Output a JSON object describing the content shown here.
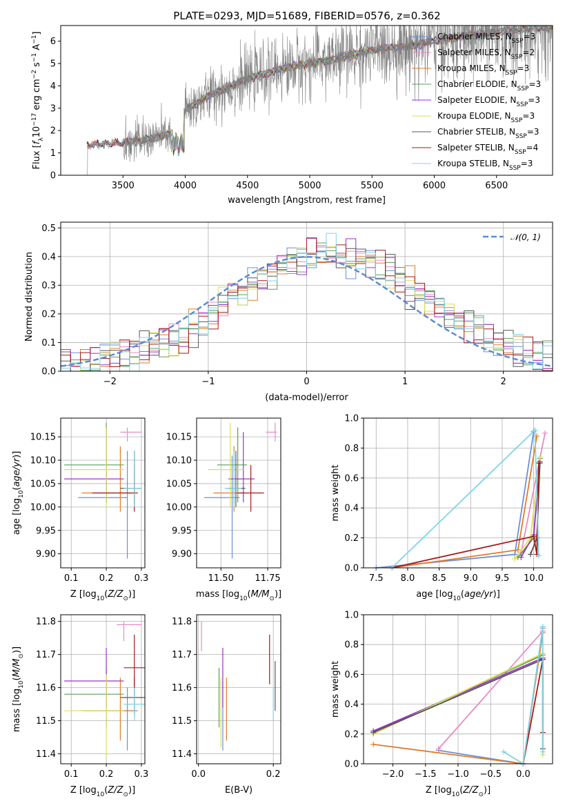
{
  "title": "PLATE=0293, MJD=51689, FIBERID=0576, z=0.362",
  "colors": {
    "Chabrier MILES": "#6b8fd6",
    "Salpeter MILES": "#e88bc4",
    "Kroupa MILES": "#e07a2c",
    "Chabrier ELODIE": "#5a9e5a",
    "Salpeter ELODIE": "#9b30c8",
    "Kroupa ELODIE": "#d8e050",
    "Chabrier STELIB": "#555555",
    "Salpeter STELIB": "#a51818",
    "Kroupa STELIB": "#7fd4e8",
    "data": "#808080",
    "gauss": "#5b8ad6"
  },
  "chart_data": [
    {
      "id": "spectrum",
      "type": "line",
      "xlabel": "wavelength [Angstrom, rest frame]",
      "ylabel": "Flux [f_λ 10^-17 erg cm^-2 s^-1 A^-1]",
      "xlim": [
        3000,
        6950
      ],
      "ylim": [
        0,
        6.7
      ],
      "xticks": [
        3500,
        4000,
        4500,
        5000,
        5500,
        6000,
        6500
      ],
      "yticks": [
        0,
        1,
        2,
        3,
        4,
        5,
        6
      ],
      "grid": false,
      "legend_position": "top-right",
      "legend": [
        "Chabrier MILES, N_SSP=3",
        "Salpeter MILES, N_SSP=2",
        "Kroupa MILES, N_SSP=3",
        "Chabrier ELODIE, N_SSP=3",
        "Salpeter ELODIE, N_SSP=3",
        "Kroupa ELODIE, N_SSP=3",
        "Chabrier STELIB, N_SSP=3",
        "Salpeter STELIB, N_SSP=4",
        "Kroupa STELIB, N_SSP=3"
      ],
      "continuum_points": [
        [
          3210,
          1.35
        ],
        [
          3350,
          1.4
        ],
        [
          3500,
          1.45
        ],
        [
          3700,
          1.6
        ],
        [
          3900,
          1.9
        ],
        [
          4000,
          2.9
        ],
        [
          4200,
          3.6
        ],
        [
          4500,
          4.3
        ],
        [
          4800,
          4.8
        ],
        [
          5000,
          5.0
        ],
        [
          5200,
          5.2
        ],
        [
          5500,
          5.6
        ],
        [
          5800,
          5.8
        ],
        [
          6000,
          6.0
        ],
        [
          6200,
          6.2
        ],
        [
          6500,
          6.4
        ],
        [
          6800,
          6.6
        ]
      ]
    },
    {
      "id": "residuals",
      "type": "histogram",
      "xlabel": "(data-model)/error",
      "ylabel": "Normed distribution",
      "xlim": [
        -2.5,
        2.5
      ],
      "ylim": [
        0,
        0.52
      ],
      "xticks": [
        -2,
        -1,
        0,
        1,
        2
      ],
      "yticks": [
        0.0,
        0.1,
        0.2,
        0.3,
        0.4,
        0.5
      ],
      "grid": true,
      "legend_position": "top-right",
      "legend": [
        "𝒩(0, 1)"
      ],
      "bin_width": 0.1,
      "approx_values": [
        0.02,
        0.02,
        0.025,
        0.035,
        0.05,
        0.06,
        0.065,
        0.07,
        0.085,
        0.1,
        0.105,
        0.11,
        0.12,
        0.15,
        0.18,
        0.21,
        0.235,
        0.26,
        0.28,
        0.3,
        0.32,
        0.345,
        0.37,
        0.38,
        0.39,
        0.405,
        0.42,
        0.41,
        0.4,
        0.395,
        0.39,
        0.38,
        0.365,
        0.35,
        0.33,
        0.3,
        0.28,
        0.255,
        0.23,
        0.205,
        0.18,
        0.16,
        0.14,
        0.12,
        0.1,
        0.085,
        0.07,
        0.06,
        0.05,
        0.04
      ]
    },
    {
      "id": "age-vs-Z",
      "type": "scatter",
      "xlabel": "Z [log10(Z/Z⊙)]",
      "ylabel": "age [log10(age/yr)]",
      "xlim": [
        0.07,
        0.31
      ],
      "ylim": [
        9.87,
        10.19
      ],
      "xticks": [
        0.1,
        0.2,
        0.3
      ],
      "yticks": [
        9.9,
        9.95,
        10.0,
        10.05,
        10.1,
        10.15
      ],
      "grid": true,
      "points": [
        {
          "name": "Chabrier MILES",
          "x": 0.26,
          "y": 10.02,
          "xerr": [
            0.12,
            0.26
          ],
          "yerr": [
            9.89,
            10.12
          ]
        },
        {
          "name": "Salpeter MILES",
          "x": 0.26,
          "y": 10.16,
          "xerr": [
            0.24,
            0.3
          ],
          "yerr": [
            10.14,
            10.17
          ]
        },
        {
          "name": "Kroupa MILES",
          "x": 0.24,
          "y": 10.03,
          "xerr": [
            0.13,
            0.28
          ],
          "yerr": [
            9.99,
            10.13
          ]
        },
        {
          "name": "Chabrier ELODIE",
          "x": 0.2,
          "y": 10.09,
          "xerr": [
            0.08,
            0.25
          ],
          "yerr": [
            10.01,
            10.18
          ]
        },
        {
          "name": "Salpeter ELODIE",
          "x": 0.2,
          "y": 10.06,
          "xerr": [
            0.08,
            0.25
          ],
          "yerr": [
            10.01,
            10.17
          ]
        },
        {
          "name": "Kroupa ELODIE",
          "x": 0.2,
          "y": 10.08,
          "xerr": [
            0.08,
            0.25
          ],
          "yerr": [
            10.0,
            10.17
          ]
        },
        {
          "name": "Chabrier STELIB",
          "x": 0.28,
          "y": 10.04,
          "xerr": [
            0.24,
            0.3
          ],
          "yerr": [
            10.0,
            10.12
          ]
        },
        {
          "name": "Salpeter STELIB",
          "x": 0.28,
          "y": 10.03,
          "xerr": [
            0.16,
            0.29
          ],
          "yerr": [
            9.99,
            10.09
          ]
        },
        {
          "name": "Kroupa STELIB",
          "x": 0.28,
          "y": 10.04,
          "xerr": [
            0.25,
            0.3
          ],
          "yerr": [
            10.0,
            10.12
          ]
        }
      ]
    },
    {
      "id": "age-vs-mass",
      "type": "scatter",
      "xlabel": "mass [log10(M/M⊙)]",
      "ylabel": "",
      "xlim": [
        11.37,
        11.82
      ],
      "ylim": [
        9.87,
        10.19
      ],
      "xticks": [
        11.5,
        11.75
      ],
      "yticks": [
        9.9,
        9.95,
        10.0,
        10.05,
        10.1,
        10.15
      ],
      "grid": true,
      "points": [
        {
          "name": "Chabrier MILES",
          "x": 11.56,
          "y": 10.02,
          "xerr": [
            11.41,
            11.6
          ],
          "yerr": [
            9.89,
            10.11
          ]
        },
        {
          "name": "Salpeter MILES",
          "x": 11.79,
          "y": 10.16,
          "xerr": [
            11.74,
            11.8
          ],
          "yerr": [
            10.14,
            10.18
          ]
        },
        {
          "name": "Kroupa MILES",
          "x": 11.57,
          "y": 10.03,
          "xerr": [
            11.46,
            11.63
          ],
          "yerr": [
            9.99,
            10.13
          ]
        },
        {
          "name": "Chabrier ELODIE",
          "x": 11.59,
          "y": 10.09,
          "xerr": [
            11.48,
            11.64
          ],
          "yerr": [
            10.01,
            10.17
          ]
        },
        {
          "name": "Salpeter ELODIE",
          "x": 11.62,
          "y": 10.06,
          "xerr": [
            11.54,
            11.68
          ],
          "yerr": [
            10.01,
            10.16
          ]
        },
        {
          "name": "Kroupa ELODIE",
          "x": 11.55,
          "y": 10.08,
          "xerr": [
            11.43,
            11.62
          ],
          "yerr": [
            10.0,
            10.18
          ]
        },
        {
          "name": "Chabrier STELIB",
          "x": 11.58,
          "y": 10.04,
          "xerr": [
            11.53,
            11.63
          ],
          "yerr": [
            10.0,
            10.12
          ]
        },
        {
          "name": "Salpeter STELIB",
          "x": 11.66,
          "y": 10.03,
          "xerr": [
            11.59,
            11.73
          ],
          "yerr": [
            9.99,
            10.09
          ]
        },
        {
          "name": "Kroupa STELIB",
          "x": 11.57,
          "y": 10.04,
          "xerr": [
            11.52,
            11.61
          ],
          "yerr": [
            10.0,
            10.12
          ]
        }
      ]
    },
    {
      "id": "weight-vs-age",
      "type": "line",
      "xlabel": "age [log10(age/yr)]",
      "ylabel": "mass weight",
      "xlim": [
        7.3,
        10.3
      ],
      "ylim": [
        0,
        1.0
      ],
      "xticks": [
        7.5,
        8.0,
        8.5,
        9.0,
        9.5,
        10.0
      ],
      "yticks": [
        0.0,
        0.2,
        0.4,
        0.6,
        0.8,
        1.0
      ],
      "grid": true,
      "series": [
        {
          "name": "Chabrier MILES",
          "x": [
            7.5,
            9.7,
            10.0
          ],
          "y": [
            0.0,
            0.09,
            0.91
          ]
        },
        {
          "name": "Salpeter MILES",
          "x": [
            9.8,
            10.18
          ],
          "y": [
            0.1,
            0.9
          ]
        },
        {
          "name": "Kroupa MILES",
          "x": [
            7.75,
            9.75,
            10.05
          ],
          "y": [
            0.0,
            0.12,
            0.88
          ]
        },
        {
          "name": "Chabrier ELODIE",
          "x": [
            9.75,
            10.0,
            10.1
          ],
          "y": [
            0.07,
            0.2,
            0.73
          ]
        },
        {
          "name": "Salpeter ELODIE",
          "x": [
            9.8,
            10.0,
            10.1
          ],
          "y": [
            0.07,
            0.22,
            0.71
          ]
        },
        {
          "name": "Kroupa ELODIE",
          "x": [
            9.7,
            9.95,
            10.1
          ],
          "y": [
            0.06,
            0.2,
            0.74
          ]
        },
        {
          "name": "Chabrier STELIB",
          "x": [
            9.95,
            10.05,
            10.1
          ],
          "y": [
            0.09,
            0.2,
            0.7
          ]
        },
        {
          "name": "Salpeter STELIB",
          "x": [
            7.75,
            10.0,
            10.05,
            10.08
          ],
          "y": [
            0.0,
            0.21,
            0.09,
            0.7
          ]
        },
        {
          "name": "Kroupa STELIB",
          "x": [
            7.75,
            10.02,
            10.08
          ],
          "y": [
            0.0,
            0.92,
            0.08
          ]
        }
      ]
    },
    {
      "id": "mass-vs-Z",
      "type": "scatter",
      "xlabel": "Z [log10(Z/Z⊙)]",
      "ylabel": "mass [log10(M/M⊙)]",
      "xlim": [
        0.07,
        0.31
      ],
      "ylim": [
        11.37,
        11.82
      ],
      "xticks": [
        0.1,
        0.2,
        0.3
      ],
      "yticks": [
        11.4,
        11.5,
        11.6,
        11.7,
        11.8
      ],
      "grid": true,
      "points": [
        {
          "name": "Chabrier MILES",
          "x": 0.26,
          "y": 11.53,
          "xerr": [
            0.14,
            0.29
          ],
          "yerr": [
            11.41,
            11.6
          ]
        },
        {
          "name": "Salpeter MILES",
          "x": 0.25,
          "y": 11.79,
          "xerr": [
            0.23,
            0.3
          ],
          "yerr": [
            11.74,
            11.8
          ]
        },
        {
          "name": "Kroupa MILES",
          "x": 0.24,
          "y": 11.53,
          "xerr": [
            0.13,
            0.28
          ],
          "yerr": [
            11.44,
            11.63
          ]
        },
        {
          "name": "Chabrier ELODIE",
          "x": 0.2,
          "y": 11.58,
          "xerr": [
            0.08,
            0.25
          ],
          "yerr": [
            11.48,
            11.66
          ]
        },
        {
          "name": "Salpeter ELODIE",
          "x": 0.2,
          "y": 11.62,
          "xerr": [
            0.08,
            0.25
          ],
          "yerr": [
            11.54,
            11.72
          ]
        },
        {
          "name": "Kroupa ELODIE",
          "x": 0.2,
          "y": 11.53,
          "xerr": [
            0.08,
            0.25
          ],
          "yerr": [
            11.39,
            11.64
          ]
        },
        {
          "name": "Chabrier STELIB",
          "x": 0.28,
          "y": 11.57,
          "xerr": [
            0.24,
            0.31
          ],
          "yerr": [
            11.52,
            11.63
          ]
        },
        {
          "name": "Salpeter STELIB",
          "x": 0.28,
          "y": 11.66,
          "xerr": [
            0.25,
            0.31
          ],
          "yerr": [
            11.6,
            11.76
          ]
        },
        {
          "name": "Kroupa STELIB",
          "x": 0.28,
          "y": 11.55,
          "xerr": [
            0.25,
            0.31
          ],
          "yerr": [
            11.5,
            11.6
          ]
        }
      ]
    },
    {
      "id": "mass-vs-EBV",
      "type": "scatter",
      "xlabel": "E(B-V)",
      "ylabel": "",
      "xlim": [
        -0.005,
        0.22
      ],
      "ylim": [
        11.37,
        11.82
      ],
      "xticks": [
        0.0,
        0.2
      ],
      "yticks": [
        11.4,
        11.5,
        11.6,
        11.7,
        11.8
      ],
      "grid": true,
      "points": [
        {
          "name": "Chabrier MILES",
          "x": 0.065,
          "y": 11.53,
          "xerr": [
            0.065,
            0.065
          ],
          "yerr": [
            11.41,
            11.62
          ]
        },
        {
          "name": "Salpeter MILES",
          "x": 0.008,
          "y": 11.76,
          "xerr": [
            0.008,
            0.008
          ],
          "yerr": [
            11.71,
            11.8
          ]
        },
        {
          "name": "Kroupa MILES",
          "x": 0.075,
          "y": 11.53,
          "xerr": [
            0.075,
            0.075
          ],
          "yerr": [
            11.44,
            11.63
          ]
        },
        {
          "name": "Chabrier ELODIE",
          "x": 0.055,
          "y": 11.58,
          "xerr": [
            0.055,
            0.055
          ],
          "yerr": [
            11.48,
            11.66
          ]
        },
        {
          "name": "Salpeter ELODIE",
          "x": 0.065,
          "y": 11.62,
          "xerr": [
            0.065,
            0.065
          ],
          "yerr": [
            11.54,
            11.72
          ]
        },
        {
          "name": "Kroupa ELODIE",
          "x": 0.06,
          "y": 11.53,
          "xerr": [
            0.06,
            0.06
          ],
          "yerr": [
            11.42,
            11.63
          ]
        },
        {
          "name": "Chabrier STELIB",
          "x": 0.205,
          "y": 11.6,
          "xerr": [
            0.205,
            0.205
          ],
          "yerr": [
            11.53,
            11.68
          ]
        },
        {
          "name": "Salpeter STELIB",
          "x": 0.19,
          "y": 11.68,
          "xerr": [
            0.19,
            0.19
          ],
          "yerr": [
            11.61,
            11.76
          ]
        },
        {
          "name": "Kroupa STELIB",
          "x": 0.2,
          "y": 11.55,
          "xerr": [
            0.2,
            0.2
          ],
          "yerr": [
            11.5,
            11.6
          ]
        }
      ]
    },
    {
      "id": "weight-vs-Z",
      "type": "line",
      "xlabel": "Z [log10(Z/Z⊙)]",
      "ylabel": "mass weight",
      "xlim": [
        -2.45,
        0.45
      ],
      "ylim": [
        0,
        1.0
      ],
      "xticks": [
        -2.0,
        -1.5,
        -1.0,
        -0.5,
        0.0
      ],
      "yticks": [
        0.0,
        0.2,
        0.4,
        0.6,
        0.8,
        1.0
      ],
      "grid": true,
      "series": [
        {
          "name": "Chabrier MILES",
          "x": [
            -1.3,
            0.0,
            0.3
          ],
          "y": [
            0.09,
            0.0,
            0.91
          ]
        },
        {
          "name": "Salpeter MILES",
          "x": [
            -1.3,
            0.3
          ],
          "y": [
            0.1,
            0.89
          ]
        },
        {
          "name": "Kroupa MILES",
          "x": [
            -2.3,
            0.0,
            0.3
          ],
          "y": [
            0.13,
            0.0,
            0.88
          ]
        },
        {
          "name": "Chabrier ELODIE",
          "x": [
            -2.3,
            0.3
          ],
          "y": [
            0.21,
            0.73
          ]
        },
        {
          "name": "Salpeter ELODIE",
          "x": [
            -2.3,
            0.3
          ],
          "y": [
            0.22,
            0.71
          ]
        },
        {
          "name": "Kroupa ELODIE",
          "x": [
            -2.3,
            0.3,
            0.3
          ],
          "y": [
            0.2,
            0.74,
            0.06
          ]
        },
        {
          "name": "Chabrier STELIB",
          "x": [
            -2.3,
            0.3,
            0.3
          ],
          "y": [
            0.21,
            0.7,
            0.1
          ]
        },
        {
          "name": "Salpeter STELIB",
          "x": [
            0.0,
            0.3,
            0.3
          ],
          "y": [
            0.0,
            0.7,
            0.21
          ]
        },
        {
          "name": "Kroupa STELIB",
          "x": [
            -0.3,
            0.0,
            0.3,
            0.3
          ],
          "y": [
            0.08,
            0.0,
            0.92,
            0.08
          ]
        }
      ]
    }
  ]
}
